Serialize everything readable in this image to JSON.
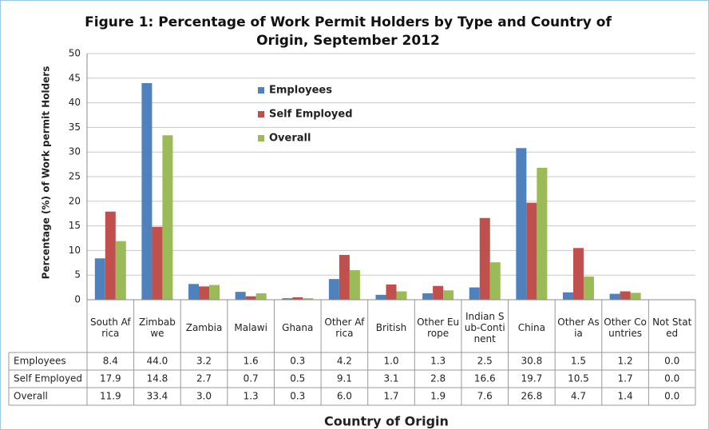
{
  "chart_data": {
    "type": "bar",
    "title": "Figure 1: Percentage of Work Permit Holders by Type and Country of Origin, September 2012",
    "y_label": "Percentage (%) of Work permit Holders",
    "x_label": "Country of Origin",
    "categories": [
      "South Africa",
      "Zimbabwe",
      "Zambia",
      "Malawi",
      "Ghana",
      "Other Africa",
      "British",
      "Other Europe",
      "Indian Sub-Continent",
      "China",
      "Other Asia",
      "Other Countries",
      "Not Stated"
    ],
    "series": [
      {
        "name": "Employees",
        "color": "#4f81bd",
        "values": [
          8.4,
          44,
          3.2,
          1.6,
          0.3,
          4.2,
          1,
          1.3,
          2.5,
          30.8,
          1.5,
          1.2,
          0
        ],
        "value_labels": [
          "8.4",
          "44.0",
          "3.2",
          "1.6",
          "0.3",
          "4.2",
          "1.0",
          "1.3",
          "2.5",
          "30.8",
          "1.5",
          "1.2",
          "0.0"
        ]
      },
      {
        "name": "Self Employed",
        "color": "#c0504d",
        "values": [
          17.9,
          14.8,
          2.7,
          0.7,
          0.5,
          9.1,
          3.1,
          2.8,
          16.6,
          19.7,
          10.5,
          1.7,
          0
        ],
        "value_labels": [
          "17.9",
          "14.8",
          "2.7",
          "0.7",
          "0.5",
          "9.1",
          "3.1",
          "2.8",
          "16.6",
          "19.7",
          "10.5",
          "1.7",
          "0.0"
        ]
      },
      {
        "name": "Overall",
        "color": "#9bbb59",
        "values": [
          11.9,
          33.4,
          3,
          1.3,
          0.3,
          6,
          1.7,
          1.9,
          7.6,
          26.8,
          4.7,
          1.4,
          0
        ],
        "value_labels": [
          "11.9",
          "33.4",
          "3.0",
          "1.3",
          "0.3",
          "6.0",
          "1.7",
          "1.9",
          "7.6",
          "26.8",
          "4.7",
          "1.4",
          "0.0"
        ]
      }
    ],
    "ylim": [
      0,
      50
    ],
    "yticks": [
      0,
      5,
      10,
      15,
      20,
      25,
      30,
      35,
      40,
      45,
      50
    ],
    "grid": true,
    "legend": "top-center"
  }
}
